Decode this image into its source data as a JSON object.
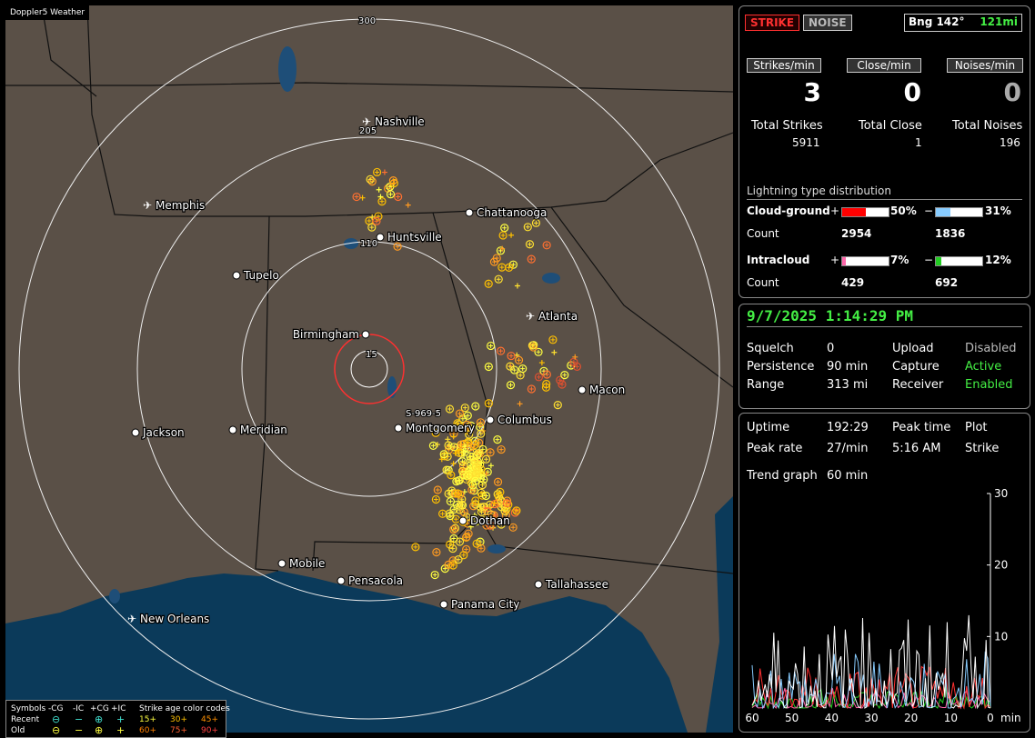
{
  "map": {
    "title": "Doppler5 Weather",
    "rings": [
      "15",
      "110",
      "205",
      "300"
    ],
    "storm_label": "S-969-5",
    "cities": [
      {
        "name": "Nashville",
        "airport": true
      },
      {
        "name": "Chattanooga",
        "airport": false
      },
      {
        "name": "Memphis",
        "airport": true
      },
      {
        "name": "Huntsville",
        "airport": false
      },
      {
        "name": "Tupelo",
        "airport": false
      },
      {
        "name": "Atlanta",
        "airport": true
      },
      {
        "name": "Birmingham",
        "airport": false
      },
      {
        "name": "Macon",
        "airport": false
      },
      {
        "name": "Columbus",
        "airport": false
      },
      {
        "name": "Montgomery",
        "airport": false
      },
      {
        "name": "Jackson",
        "airport": false
      },
      {
        "name": "Meridian",
        "airport": false
      },
      {
        "name": "Dothan",
        "airport": false
      },
      {
        "name": "Mobile",
        "airport": false
      },
      {
        "name": "Pensacola",
        "airport": false
      },
      {
        "name": "Tallahassee",
        "airport": false
      },
      {
        "name": "Panama City",
        "airport": false
      },
      {
        "name": "New Orleans",
        "airport": true
      }
    ]
  },
  "legend": {
    "symbols_label": "Symbols",
    "headers": [
      "-CG",
      "-IC",
      "+CG",
      "+IC"
    ],
    "recent_label": "Recent",
    "old_label": "Old",
    "age_title": "Strike age color codes",
    "recent_ages": [
      "15+",
      "30+",
      "45+"
    ],
    "old_ages": [
      "60+",
      "75+",
      "90+"
    ]
  },
  "status": {
    "strike_button": "STRIKE",
    "noise_button": "NOISE",
    "bearing": "Bng 142°",
    "distance": "121mi"
  },
  "rates": {
    "strikes_label": "Strikes/min",
    "close_label": "Close/min",
    "noises_label": "Noises/min",
    "strikes_value": "3",
    "close_value": "0",
    "noises_value": "0"
  },
  "totals": {
    "strikes_label": "Total Strikes",
    "close_label": "Total Close",
    "noises_label": "Total Noises",
    "strikes_value": "5911",
    "close_value": "1",
    "noises_value": "196"
  },
  "distribution": {
    "title": "Lightning type distribution",
    "cg_label": "Cloud-ground",
    "ic_label": "Intracloud",
    "count_label": "Count",
    "plus": "+",
    "minus": "−",
    "cg_pos_pct": "50%",
    "cg_neg_pct": "31%",
    "cg_pos_count": "2954",
    "cg_neg_count": "1836",
    "ic_pos_pct": "7%",
    "ic_neg_pct": "12%",
    "ic_pos_count": "429",
    "ic_neg_count": "692",
    "cg_pos_frac": 0.5,
    "cg_neg_frac": 0.31,
    "ic_pos_frac": 0.07,
    "ic_neg_frac": 0.12
  },
  "settings": {
    "datetime": "9/7/2025 1:14:29 PM",
    "squelch_label": "Squelch",
    "squelch_value": "0",
    "persistence_label": "Persistence",
    "persistence_value": "90 min",
    "range_label": "Range",
    "range_value": "313 mi",
    "upload_label": "Upload",
    "upload_value": "Disabled",
    "capture_label": "Capture",
    "capture_value": "Active",
    "receiver_label": "Receiver",
    "receiver_value": "Enabled"
  },
  "stats": {
    "uptime_label": "Uptime",
    "uptime_value": "192:29",
    "peak_time_label": "Peak time",
    "plot_label": "Plot",
    "peak_rate_label": "Peak rate",
    "peak_rate_value": "27/min",
    "peak_time_value": "5:16 AM",
    "plot_value": "Strike",
    "trend_label": "Trend graph",
    "trend_value": "60 min"
  },
  "trend": {
    "x_ticks": [
      "60",
      "50",
      "40",
      "30",
      "20",
      "10",
      "0"
    ],
    "x_unit": "min",
    "y_ticks": [
      "30",
      "20",
      "10"
    ],
    "ylim": [
      0,
      30
    ],
    "xlim": [
      60,
      0
    ]
  },
  "colors": {
    "strike_red": "#ff3030",
    "active_green": "#44ee44",
    "cg_pos": "#ff0000",
    "cg_neg": "#88ccff",
    "ic_pos": "#ff66aa",
    "ic_neg": "#22cc22"
  }
}
